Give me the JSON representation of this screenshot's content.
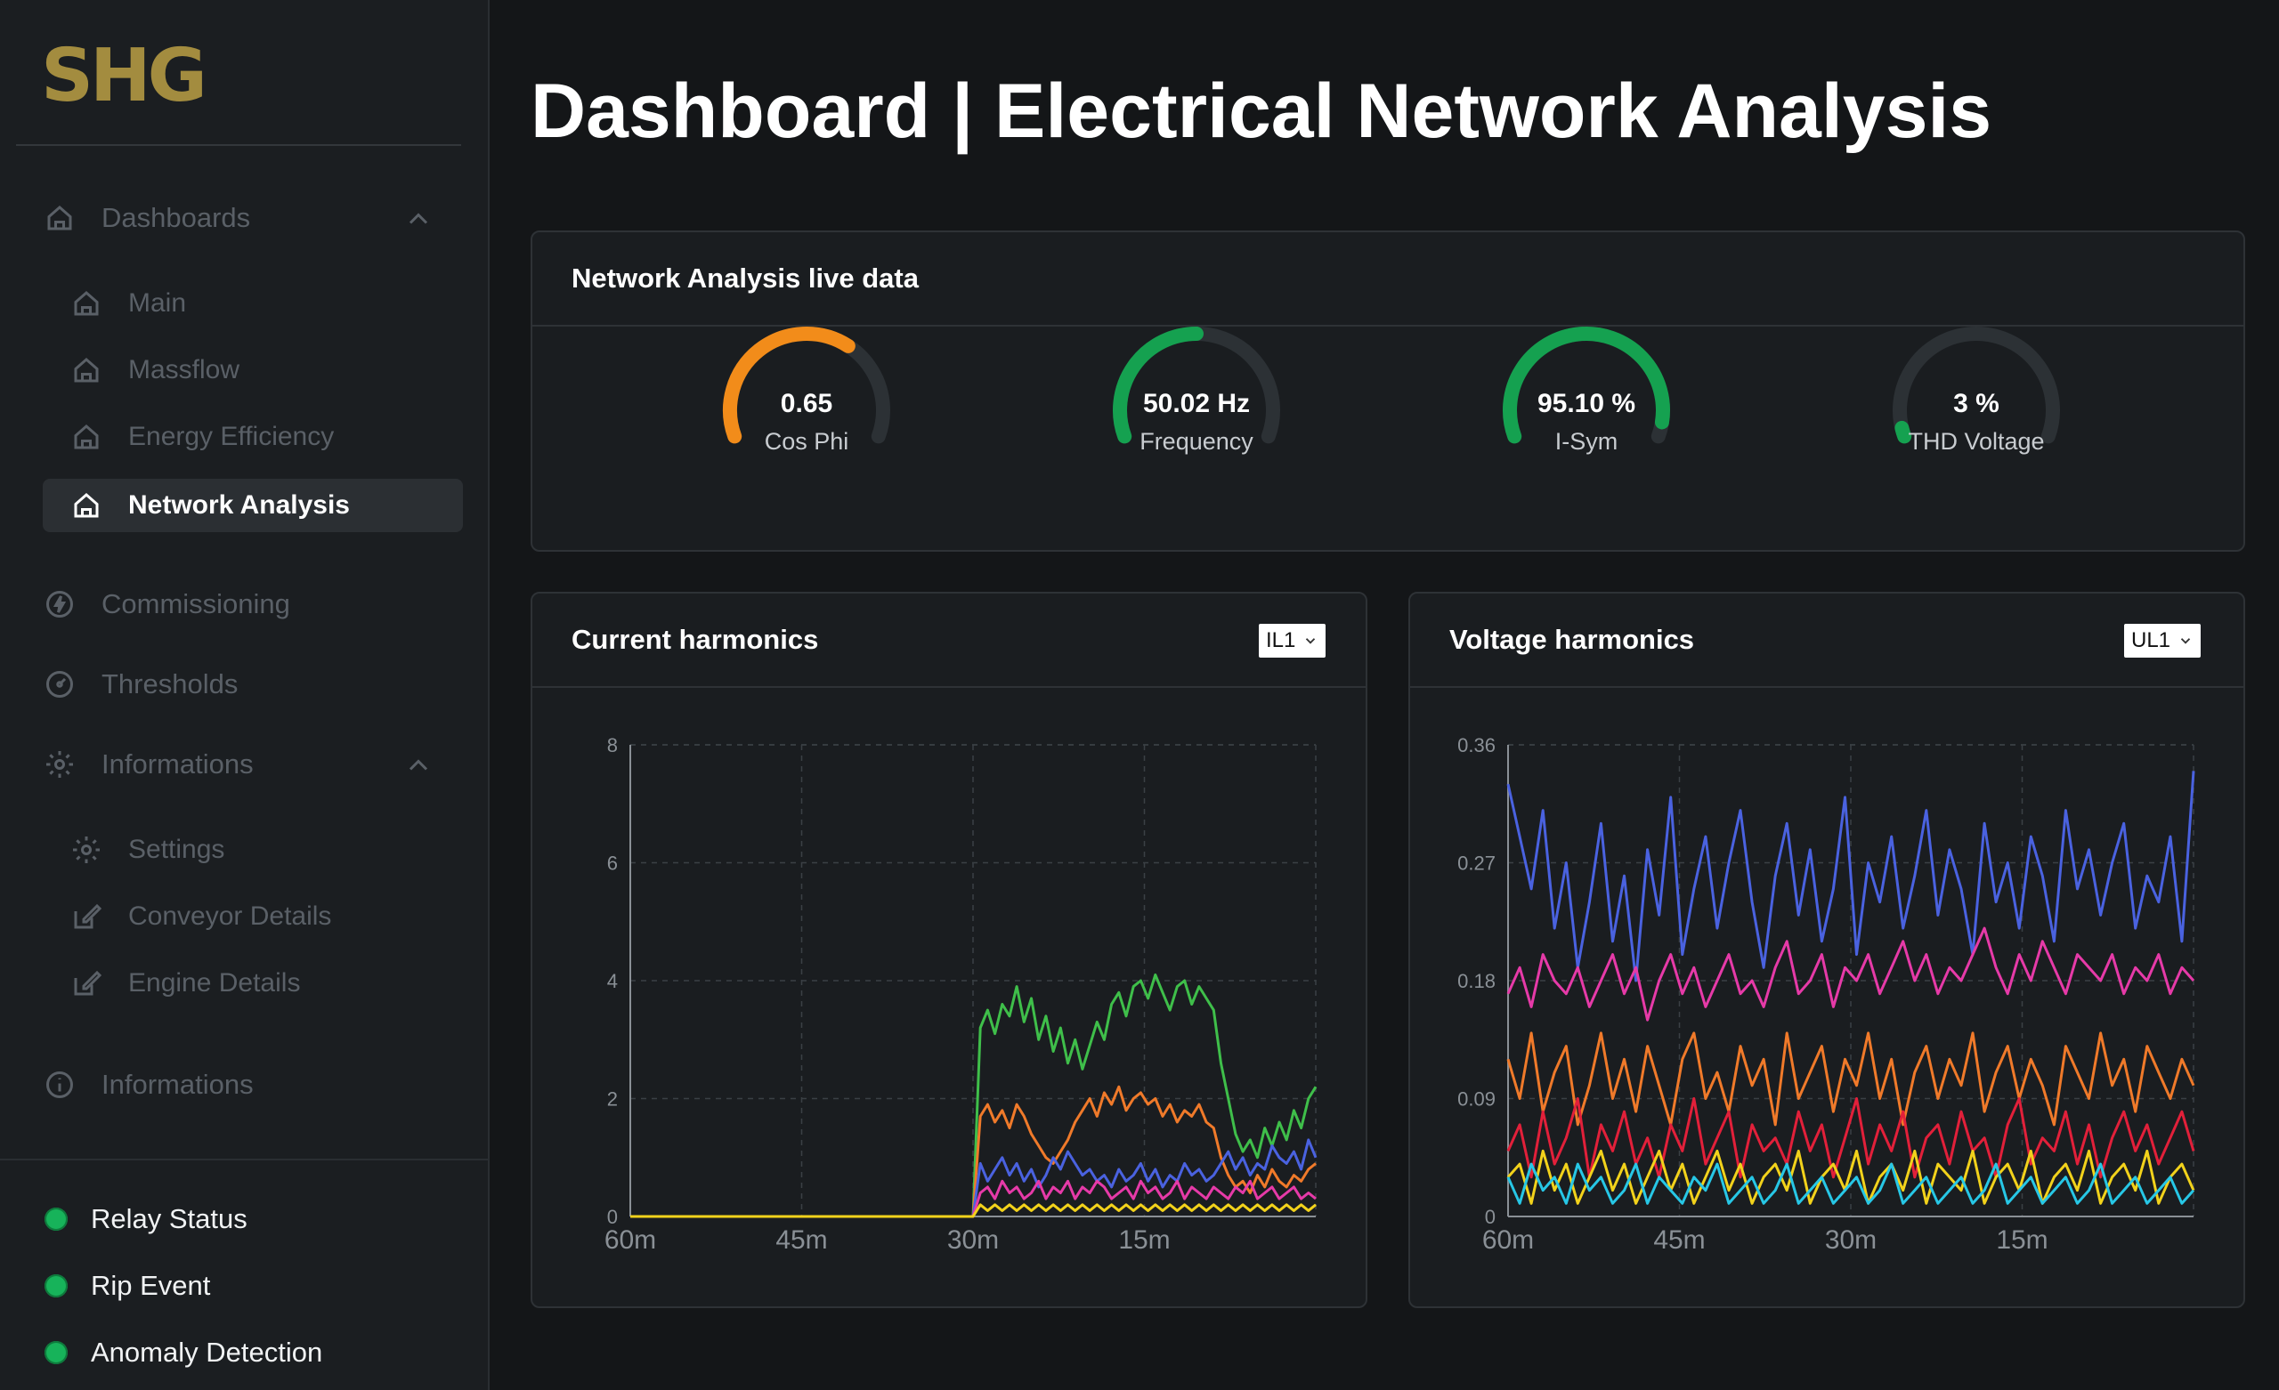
{
  "app": {
    "logo": "SHG",
    "title": "Dashboard | Electrical Network Analysis"
  },
  "sidebar": {
    "sections": [
      {
        "label": "Dashboards",
        "icon": "home-icon",
        "expanded": true
      },
      {
        "label": "Commissioning",
        "icon": "lightning-icon"
      },
      {
        "label": "Thresholds",
        "icon": "gauge-icon"
      },
      {
        "label": "Informations",
        "icon": "gear-icon",
        "expanded": true
      },
      {
        "label": "Informations",
        "icon": "info-icon"
      }
    ],
    "dashboards": [
      {
        "label": "Main",
        "icon": "home-icon"
      },
      {
        "label": "Massflow",
        "icon": "home-icon"
      },
      {
        "label": "Energy Efficiency",
        "icon": "home-icon"
      },
      {
        "label": "Network Analysis",
        "icon": "home-icon",
        "active": true
      }
    ],
    "informations": [
      {
        "label": "Settings",
        "icon": "gear-icon"
      },
      {
        "label": "Conveyor Details",
        "icon": "edit-icon"
      },
      {
        "label": "Engine Details",
        "icon": "edit-icon"
      }
    ],
    "status": [
      {
        "label": "Relay Status",
        "color": "#17b35a"
      },
      {
        "label": "Rip Event",
        "color": "#17b35a"
      },
      {
        "label": "Anomaly Detection",
        "color": "#17b35a"
      }
    ]
  },
  "live": {
    "title": "Network Analysis live data",
    "gauges": [
      {
        "value": "0.65",
        "label": "Cos Phi",
        "fraction": 0.65,
        "color": "#f28c1a"
      },
      {
        "value": "50.02 Hz",
        "label": "Frequency",
        "fraction": 0.5,
        "color": "#15a150"
      },
      {
        "value": "95.10 %",
        "label": "I-Sym",
        "fraction": 0.95,
        "color": "#15a150"
      },
      {
        "value": "3 %",
        "label": "THD Voltage",
        "fraction": 0.03,
        "color": "#15a150"
      }
    ],
    "track_color": "#2c3135"
  },
  "current": {
    "title": "Current harmonics",
    "select": "IL1",
    "chart_data": {
      "type": "line",
      "x_ticks": [
        "60m",
        "45m",
        "30m",
        "15m"
      ],
      "y_ticks": [
        "0",
        "2",
        "4",
        "6",
        "8"
      ],
      "ylim": [
        0,
        8
      ],
      "grid": true,
      "series": [
        {
          "color": "#3fbf4a",
          "values": [
            0,
            0,
            0,
            0,
            0,
            0,
            0,
            0,
            0,
            0,
            0,
            0,
            0,
            0,
            0,
            0,
            0,
            0,
            0,
            0,
            0,
            0,
            0,
            0,
            0,
            0,
            0,
            0,
            0,
            0,
            0,
            0,
            0,
            0,
            0,
            0,
            0,
            0,
            0,
            0,
            0,
            0,
            0,
            0,
            0,
            0,
            0,
            0,
            3.2,
            3.5,
            3.1,
            3.6,
            3.4,
            3.9,
            3.3,
            3.7,
            3.0,
            3.4,
            2.8,
            3.2,
            2.6,
            3.0,
            2.5,
            2.9,
            3.3,
            3.0,
            3.6,
            3.8,
            3.4,
            3.9,
            4.0,
            3.7,
            4.1,
            3.8,
            3.5,
            3.9,
            4.0,
            3.6,
            3.9,
            3.7,
            3.5,
            2.6,
            2.0,
            1.4,
            1.1,
            1.3,
            1.0,
            1.5,
            1.2,
            1.6,
            1.3,
            1.8,
            1.5,
            2.0,
            2.2
          ]
        },
        {
          "color": "#f07a2a",
          "values": [
            0,
            0,
            0,
            0,
            0,
            0,
            0,
            0,
            0,
            0,
            0,
            0,
            0,
            0,
            0,
            0,
            0,
            0,
            0,
            0,
            0,
            0,
            0,
            0,
            0,
            0,
            0,
            0,
            0,
            0,
            0,
            0,
            0,
            0,
            0,
            0,
            0,
            0,
            0,
            0,
            0,
            0,
            0,
            0,
            0,
            0,
            0,
            0,
            1.7,
            1.9,
            1.6,
            1.8,
            1.5,
            1.9,
            1.7,
            1.4,
            1.2,
            1.0,
            0.9,
            1.1,
            1.3,
            1.6,
            1.8,
            2.0,
            1.7,
            2.1,
            1.9,
            2.2,
            1.8,
            2.0,
            2.1,
            1.9,
            2.0,
            1.7,
            1.9,
            1.6,
            1.8,
            1.7,
            1.9,
            1.6,
            1.5,
            1.0,
            0.7,
            0.5,
            0.6,
            0.4,
            0.7,
            0.5,
            0.8,
            0.6,
            0.5,
            0.7,
            0.6,
            0.8,
            0.9
          ]
        },
        {
          "color": "#4a62e0",
          "values": [
            0,
            0,
            0,
            0,
            0,
            0,
            0,
            0,
            0,
            0,
            0,
            0,
            0,
            0,
            0,
            0,
            0,
            0,
            0,
            0,
            0,
            0,
            0,
            0,
            0,
            0,
            0,
            0,
            0,
            0,
            0,
            0,
            0,
            0,
            0,
            0,
            0,
            0,
            0,
            0,
            0,
            0,
            0,
            0,
            0,
            0,
            0,
            0,
            0.9,
            0.6,
            0.8,
            1.0,
            0.7,
            0.9,
            0.6,
            0.8,
            0.5,
            0.7,
            1.0,
            0.8,
            1.1,
            0.9,
            0.7,
            0.8,
            0.6,
            0.7,
            0.5,
            0.8,
            0.6,
            0.7,
            0.9,
            0.6,
            0.8,
            0.5,
            0.7,
            0.6,
            0.9,
            0.7,
            0.8,
            0.6,
            0.7,
            0.9,
            1.1,
            0.8,
            1.0,
            0.7,
            0.9,
            0.8,
            1.2,
            1.0,
            0.9,
            1.1,
            0.8,
            1.3,
            1.0
          ]
        },
        {
          "color": "#e63aa8",
          "values": [
            0,
            0,
            0,
            0,
            0,
            0,
            0,
            0,
            0,
            0,
            0,
            0,
            0,
            0,
            0,
            0,
            0,
            0,
            0,
            0,
            0,
            0,
            0,
            0,
            0,
            0,
            0,
            0,
            0,
            0,
            0,
            0,
            0,
            0,
            0,
            0,
            0,
            0,
            0,
            0,
            0,
            0,
            0,
            0,
            0,
            0,
            0,
            0,
            0.4,
            0.5,
            0.3,
            0.6,
            0.4,
            0.5,
            0.3,
            0.4,
            0.6,
            0.3,
            0.5,
            0.4,
            0.6,
            0.3,
            0.5,
            0.4,
            0.6,
            0.5,
            0.3,
            0.4,
            0.5,
            0.3,
            0.6,
            0.4,
            0.5,
            0.3,
            0.4,
            0.6,
            0.3,
            0.5,
            0.4,
            0.3,
            0.5,
            0.4,
            0.3,
            0.5,
            0.4,
            0.6,
            0.3,
            0.4,
            0.5,
            0.3,
            0.4,
            0.5,
            0.3,
            0.4,
            0.3
          ]
        },
        {
          "color": "#f2d21b",
          "values": [
            0,
            0,
            0,
            0,
            0,
            0,
            0,
            0,
            0,
            0,
            0,
            0,
            0,
            0,
            0,
            0,
            0,
            0,
            0,
            0,
            0,
            0,
            0,
            0,
            0,
            0,
            0,
            0,
            0,
            0,
            0,
            0,
            0,
            0,
            0,
            0,
            0,
            0,
            0,
            0,
            0,
            0,
            0,
            0,
            0,
            0,
            0,
            0,
            0.2,
            0.1,
            0.2,
            0.1,
            0.2,
            0.1,
            0.2,
            0.1,
            0.2,
            0.1,
            0.2,
            0.1,
            0.2,
            0.1,
            0.2,
            0.1,
            0.2,
            0.1,
            0.2,
            0.1,
            0.2,
            0.1,
            0.2,
            0.1,
            0.2,
            0.1,
            0.2,
            0.1,
            0.2,
            0.1,
            0.2,
            0.1,
            0.2,
            0.1,
            0.2,
            0.1,
            0.2,
            0.1,
            0.2,
            0.1,
            0.2,
            0.1,
            0.2,
            0.1,
            0.2,
            0.1,
            0.2
          ]
        }
      ]
    }
  },
  "voltage": {
    "title": "Voltage harmonics",
    "select": "UL1",
    "chart_data": {
      "type": "line",
      "x_ticks": [
        "60m",
        "45m",
        "30m",
        "15m"
      ],
      "y_ticks": [
        "0",
        "0.09",
        "0.18",
        "0.27",
        "0.36"
      ],
      "ylim": [
        0,
        0.36
      ],
      "grid": true,
      "series": [
        {
          "color": "#4a62e0",
          "values": [
            0.33,
            0.29,
            0.25,
            0.31,
            0.22,
            0.27,
            0.19,
            0.24,
            0.3,
            0.21,
            0.26,
            0.18,
            0.28,
            0.23,
            0.32,
            0.2,
            0.25,
            0.29,
            0.22,
            0.27,
            0.31,
            0.24,
            0.19,
            0.26,
            0.3,
            0.23,
            0.28,
            0.21,
            0.25,
            0.32,
            0.2,
            0.27,
            0.24,
            0.29,
            0.22,
            0.26,
            0.31,
            0.23,
            0.28,
            0.25,
            0.2,
            0.3,
            0.24,
            0.27,
            0.22,
            0.29,
            0.26,
            0.21,
            0.31,
            0.25,
            0.28,
            0.23,
            0.27,
            0.3,
            0.22,
            0.26,
            0.24,
            0.29,
            0.21,
            0.34
          ]
        },
        {
          "color": "#e63aa8",
          "values": [
            0.17,
            0.19,
            0.16,
            0.2,
            0.18,
            0.17,
            0.19,
            0.16,
            0.18,
            0.2,
            0.17,
            0.19,
            0.15,
            0.18,
            0.2,
            0.17,
            0.19,
            0.16,
            0.18,
            0.2,
            0.17,
            0.18,
            0.16,
            0.19,
            0.21,
            0.17,
            0.18,
            0.2,
            0.16,
            0.19,
            0.18,
            0.2,
            0.17,
            0.19,
            0.21,
            0.18,
            0.2,
            0.17,
            0.19,
            0.18,
            0.2,
            0.22,
            0.19,
            0.17,
            0.2,
            0.18,
            0.21,
            0.19,
            0.17,
            0.2,
            0.19,
            0.18,
            0.2,
            0.17,
            0.19,
            0.18,
            0.2,
            0.17,
            0.19,
            0.18
          ]
        },
        {
          "color": "#f07a2a",
          "values": [
            0.12,
            0.09,
            0.14,
            0.08,
            0.11,
            0.13,
            0.07,
            0.1,
            0.14,
            0.09,
            0.12,
            0.08,
            0.13,
            0.1,
            0.07,
            0.12,
            0.14,
            0.09,
            0.11,
            0.08,
            0.13,
            0.1,
            0.12,
            0.07,
            0.14,
            0.09,
            0.11,
            0.13,
            0.08,
            0.12,
            0.1,
            0.14,
            0.09,
            0.12,
            0.07,
            0.11,
            0.13,
            0.09,
            0.12,
            0.1,
            0.14,
            0.08,
            0.11,
            0.13,
            0.09,
            0.12,
            0.1,
            0.07,
            0.13,
            0.11,
            0.09,
            0.14,
            0.1,
            0.12,
            0.08,
            0.13,
            0.11,
            0.09,
            0.12,
            0.1
          ]
        },
        {
          "color": "#e2203a",
          "values": [
            0.05,
            0.07,
            0.03,
            0.08,
            0.04,
            0.06,
            0.09,
            0.03,
            0.07,
            0.05,
            0.08,
            0.04,
            0.06,
            0.03,
            0.07,
            0.05,
            0.09,
            0.04,
            0.06,
            0.08,
            0.03,
            0.07,
            0.05,
            0.06,
            0.04,
            0.08,
            0.05,
            0.07,
            0.03,
            0.06,
            0.09,
            0.04,
            0.07,
            0.05,
            0.08,
            0.03,
            0.06,
            0.07,
            0.04,
            0.08,
            0.05,
            0.06,
            0.03,
            0.07,
            0.09,
            0.04,
            0.06,
            0.05,
            0.08,
            0.04,
            0.07,
            0.03,
            0.06,
            0.08,
            0.05,
            0.07,
            0.04,
            0.06,
            0.08,
            0.05
          ]
        },
        {
          "color": "#f2d21b",
          "values": [
            0.03,
            0.04,
            0.01,
            0.05,
            0.02,
            0.04,
            0.01,
            0.03,
            0.05,
            0.02,
            0.04,
            0.01,
            0.03,
            0.05,
            0.02,
            0.04,
            0.01,
            0.03,
            0.05,
            0.02,
            0.04,
            0.01,
            0.03,
            0.04,
            0.02,
            0.05,
            0.01,
            0.03,
            0.04,
            0.02,
            0.05,
            0.01,
            0.03,
            0.04,
            0.02,
            0.05,
            0.01,
            0.04,
            0.03,
            0.02,
            0.05,
            0.01,
            0.03,
            0.04,
            0.02,
            0.05,
            0.01,
            0.03,
            0.04,
            0.02,
            0.05,
            0.01,
            0.03,
            0.04,
            0.02,
            0.05,
            0.01,
            0.03,
            0.04,
            0.02
          ]
        },
        {
          "color": "#27c7e6",
          "values": [
            0.03,
            0.01,
            0.04,
            0.02,
            0.03,
            0.01,
            0.04,
            0.02,
            0.03,
            0.01,
            0.02,
            0.04,
            0.01,
            0.03,
            0.02,
            0.01,
            0.03,
            0.02,
            0.04,
            0.01,
            0.02,
            0.03,
            0.01,
            0.02,
            0.04,
            0.01,
            0.02,
            0.03,
            0.01,
            0.02,
            0.03,
            0.01,
            0.02,
            0.04,
            0.01,
            0.02,
            0.03,
            0.01,
            0.02,
            0.03,
            0.01,
            0.02,
            0.04,
            0.01,
            0.02,
            0.03,
            0.01,
            0.02,
            0.03,
            0.01,
            0.02,
            0.04,
            0.01,
            0.02,
            0.03,
            0.01,
            0.02,
            0.03,
            0.01,
            0.02
          ]
        }
      ]
    }
  }
}
